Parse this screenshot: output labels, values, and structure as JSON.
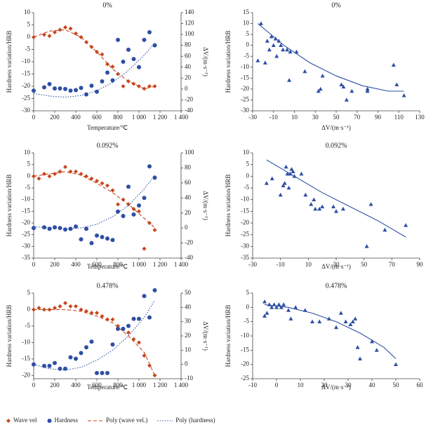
{
  "chart_data": [
    {
      "type": "scatter",
      "title": "0%",
      "x_label": "Temperature/℃",
      "y_label": "Hardness variation/HRB",
      "y2_label": "ΔV/(m·s⁻¹)",
      "xlim": [
        0,
        1400
      ],
      "xticks": [
        0,
        200,
        400,
        600,
        800,
        {
          "value": 1000,
          "label": "1 000"
        },
        {
          "value": 1200,
          "label": "1 200"
        },
        {
          "value": 1400,
          "label": "1 400"
        }
      ],
      "ylim": [
        -30,
        10
      ],
      "yticks": [
        10,
        5,
        0,
        -5,
        -10,
        -15,
        -20,
        -25,
        -30
      ],
      "y2lim": [
        -40,
        140
      ],
      "y2ticks": [
        140,
        120,
        100,
        80,
        60,
        40,
        20,
        0,
        -20,
        -40
      ],
      "legend": "bottom",
      "series": [
        {
          "name": "Wave vel",
          "color": "#c8461e",
          "marker": "diamond",
          "x": [
            0,
            100,
            150,
            200,
            250,
            300,
            350,
            400,
            450,
            500,
            550,
            600,
            650,
            700,
            750,
            800,
            850,
            900,
            950,
            1000,
            1050,
            1100,
            1150
          ],
          "values": [
            0,
            1,
            0.5,
            2,
            3,
            4,
            3.5,
            1.5,
            0,
            -2,
            -4,
            -6,
            -7,
            -11,
            -12,
            -15,
            -20,
            -18,
            -19,
            -20,
            -21,
            -20,
            -20
          ]
        },
        {
          "name": "Hardness",
          "color": "#2e4fa3",
          "marker": "circle",
          "axis": "y2",
          "x": [
            0,
            100,
            150,
            200,
            250,
            300,
            350,
            400,
            450,
            500,
            550,
            600,
            650,
            700,
            750,
            800,
            850,
            900,
            950,
            1000,
            1050,
            1100,
            1150
          ],
          "values": [
            -3,
            3,
            9,
            1,
            1,
            0,
            -3,
            -2,
            2,
            -10,
            6,
            -5,
            14,
            30,
            16,
            90,
            50,
            72,
            55,
            40,
            90,
            104,
            80
          ]
        },
        {
          "name": "Poly (wave vel.)",
          "color": "#c8461e",
          "line": "dashed",
          "x": [
            0,
            150,
            300,
            450,
            600,
            750,
            900,
            1050,
            1150
          ],
          "values": [
            0,
            2.5,
            3,
            0,
            -6,
            -13,
            -18,
            -21,
            -20
          ]
        },
        {
          "name": "Poly (hardness)",
          "color": "#2e4fa3",
          "line": "dotted",
          "axis": "y2",
          "x": [
            0,
            150,
            300,
            450,
            600,
            750,
            900,
            1050,
            1150
          ],
          "values": [
            -8,
            -13,
            -15,
            -12,
            -3,
            12,
            34,
            62,
            85
          ]
        }
      ]
    },
    {
      "type": "scatter",
      "title": "0%",
      "x_label": "ΔV/(m·s⁻¹)",
      "y_label": "Hardness variation/HRB",
      "xlim": [
        -30,
        130
      ],
      "xticks": [
        -30,
        -10,
        10,
        30,
        50,
        70,
        90,
        110,
        130
      ],
      "ylim": [
        -30,
        15
      ],
      "yticks": [
        15,
        10,
        5,
        0,
        -5,
        -10,
        -15,
        -20,
        -25,
        -30
      ],
      "series": [
        {
          "color": "#2e4fa3",
          "marker": "triangle",
          "x": [
            -25,
            -22,
            -18,
            -16,
            -14,
            -12,
            -10,
            -8,
            -7,
            -5,
            -3,
            -1,
            3,
            5,
            6,
            12,
            20,
            33,
            35,
            37,
            55,
            57,
            60,
            65,
            80,
            80,
            105,
            108,
            115
          ],
          "values": [
            -7,
            10,
            -8,
            2,
            -2,
            4,
            0,
            3,
            -5,
            2,
            0,
            -2,
            -2,
            -16,
            -3,
            -3,
            -12,
            -21,
            -20,
            -14,
            -18,
            -19,
            -25,
            -21,
            -21,
            -20,
            -9,
            -18,
            -23
          ]
        },
        {
          "color": "#2e4fa3",
          "line": "solid",
          "x": [
            -25,
            0,
            25,
            50,
            75,
            100,
            115
          ],
          "values": [
            10,
            0,
            -8,
            -14,
            -18.5,
            -21,
            -21
          ]
        }
      ]
    },
    {
      "type": "scatter",
      "title": "0.092%",
      "x_label": "Temperature/℃",
      "y_label": "Hardness variation/HRB",
      "y2_label": "ΔV/(m·s⁻¹)",
      "xlim": [
        0,
        1400
      ],
      "xticks": [
        0,
        200,
        400,
        600,
        800,
        {
          "value": 1000,
          "label": "1 000"
        },
        {
          "value": 1200,
          "label": "1 200"
        },
        {
          "value": 1400,
          "label": "1 400"
        }
      ],
      "ylim": [
        -35,
        10
      ],
      "yticks": [
        10,
        5,
        0,
        -5,
        -10,
        -15,
        -20,
        -25,
        -30,
        -35
      ],
      "y2lim": [
        -40,
        100
      ],
      "y2ticks": [
        100,
        80,
        60,
        40,
        20,
        0,
        -20,
        -40
      ],
      "series": [
        {
          "color": "#c8461e",
          "marker": "diamond",
          "x": [
            0,
            50,
            100,
            150,
            200,
            250,
            300,
            350,
            400,
            450,
            500,
            550,
            600,
            650,
            700,
            750,
            800,
            850,
            900,
            950,
            1000,
            1050,
            1100,
            1150
          ],
          "values": [
            0,
            -1,
            1,
            0,
            1,
            2,
            4,
            2,
            2,
            1,
            0,
            -1,
            -2,
            -3,
            -4,
            -6,
            -12,
            -10,
            -12,
            -14,
            -15,
            -31,
            -20,
            -23
          ]
        },
        {
          "color": "#2e4fa3",
          "marker": "circle",
          "axis": "y2",
          "x": [
            0,
            100,
            150,
            200,
            250,
            300,
            350,
            400,
            450,
            500,
            550,
            600,
            650,
            700,
            750,
            800,
            850,
            900,
            950,
            1000,
            1050,
            1100,
            1150
          ],
          "values": [
            0,
            1,
            -1,
            1,
            0,
            -2,
            -1,
            2,
            -15,
            -1,
            -20,
            -10,
            -12,
            -14,
            -16,
            22,
            16,
            55,
            18,
            30,
            40,
            82,
            67
          ]
        },
        {
          "color": "#c8461e",
          "line": "dashed",
          "x": [
            0,
            150,
            300,
            450,
            600,
            750,
            900,
            1050,
            1150
          ],
          "values": [
            0,
            1,
            2,
            0.5,
            -3,
            -7,
            -12,
            -18,
            -22
          ]
        },
        {
          "color": "#2e4fa3",
          "line": "dotted",
          "axis": "y2",
          "x": [
            0,
            150,
            300,
            450,
            600,
            750,
            900,
            1050,
            1150
          ],
          "values": [
            2,
            0,
            -1,
            0,
            5,
            15,
            30,
            52,
            70
          ]
        }
      ]
    },
    {
      "type": "scatter",
      "title": "0.092%",
      "x_label": "ΔV/(m·s⁻¹)",
      "y_label": "Hardness variation/HRB",
      "xlim": [
        -30,
        90
      ],
      "xticks": [
        -30,
        -10,
        10,
        30,
        50,
        70,
        90
      ],
      "ylim": [
        -35,
        10
      ],
      "yticks": [
        10,
        5,
        0,
        -5,
        -10,
        -15,
        -20,
        -25,
        -30,
        -35
      ],
      "series": [
        {
          "color": "#2e4fa3",
          "marker": "triangle",
          "x": [
            -20,
            -16,
            -10,
            -8,
            -7,
            -6,
            -5,
            -4,
            -3,
            -2,
            -1,
            0,
            5,
            8,
            12,
            14,
            15,
            18,
            20,
            28,
            30,
            35,
            52,
            55,
            65,
            80
          ],
          "values": [
            -3,
            -1,
            -8,
            -4,
            -3,
            4,
            1,
            -5,
            1,
            3,
            2,
            0,
            1,
            -8,
            -12,
            -10,
            -14,
            -14,
            -13,
            -13,
            -15,
            -14,
            -30,
            -12,
            -23,
            -21
          ]
        },
        {
          "color": "#2e4fa3",
          "line": "solid",
          "x": [
            -20,
            0,
            20,
            40,
            60,
            80
          ],
          "values": [
            7,
            0,
            -7,
            -13,
            -19,
            -26
          ]
        }
      ]
    },
    {
      "type": "scatter",
      "title": "0.478%",
      "x_label": "Temperature/℃",
      "y_label": "Hardness variation/HRB",
      "y2_label": "ΔV/(m·s⁻¹)",
      "xlim": [
        0,
        1400
      ],
      "xticks": [
        0,
        200,
        400,
        600,
        800,
        {
          "value": 1000,
          "label": "1 000"
        },
        {
          "value": 1200,
          "label": "1 200"
        },
        {
          "value": 1400,
          "label": "1 400"
        }
      ],
      "ylim": [
        -21,
        5
      ],
      "yticks": [
        5,
        0,
        -5,
        -10,
        -15,
        -20
      ],
      "y2lim": [
        -10,
        50
      ],
      "y2ticks": [
        50,
        40,
        30,
        20,
        10,
        0,
        -10
      ],
      "series": [
        {
          "color": "#c8461e",
          "marker": "diamond",
          "x": [
            0,
            50,
            100,
            150,
            200,
            250,
            300,
            350,
            400,
            450,
            500,
            550,
            600,
            650,
            700,
            750,
            800,
            850,
            900,
            950,
            1000,
            1050,
            1100,
            1150
          ],
          "values": [
            0,
            0.5,
            0,
            0,
            0.5,
            1,
            2,
            1,
            1,
            0,
            -0.5,
            -1,
            -1,
            -2,
            -3,
            -3,
            -5,
            -6,
            -7,
            -9,
            -10,
            -14,
            -17,
            -20
          ]
        },
        {
          "color": "#2e4fa3",
          "marker": "circle",
          "axis": "y2",
          "x": [
            0,
            100,
            150,
            200,
            250,
            300,
            350,
            400,
            450,
            500,
            550,
            600,
            650,
            700,
            750,
            800,
            850,
            900,
            950,
            1000,
            1050,
            1100,
            1150
          ],
          "values": [
            0,
            -1,
            -1,
            1,
            -3,
            -3,
            5,
            4,
            8,
            12,
            16,
            -6,
            -6,
            -6,
            14,
            25,
            25,
            27,
            32,
            32,
            48,
            33,
            52
          ]
        },
        {
          "color": "#c8461e",
          "line": "dashed",
          "x": [
            0,
            150,
            300,
            450,
            600,
            750,
            900,
            1050,
            1150
          ],
          "values": [
            0,
            0,
            0,
            -0.5,
            -2,
            -4,
            -8,
            -13,
            -20
          ]
        },
        {
          "color": "#2e4fa3",
          "line": "dotted",
          "axis": "y2",
          "x": [
            0,
            150,
            300,
            450,
            600,
            750,
            900,
            1050,
            1150
          ],
          "values": [
            0,
            -3,
            -4,
            -2,
            3,
            10,
            20,
            33,
            45
          ]
        }
      ]
    },
    {
      "type": "scatter",
      "title": "0.478%",
      "x_label": "ΔV/(m·s⁻¹)",
      "y_label": "Hardness variation/HRB",
      "xlim": [
        -10,
        60
      ],
      "xticks": [
        -10,
        0,
        10,
        20,
        30,
        40,
        50,
        60
      ],
      "ylim": [
        -25,
        5
      ],
      "yticks": [
        5,
        0,
        -5,
        -10,
        -15,
        -20,
        -25
      ],
      "series": [
        {
          "color": "#2e4fa3",
          "marker": "triangle",
          "x": [
            -5,
            -5,
            -4,
            -3,
            -2,
            -1,
            0,
            1,
            2,
            3,
            5,
            6,
            8,
            12,
            15,
            18,
            22,
            25,
            27,
            29,
            31,
            32,
            33,
            34,
            35,
            40,
            42,
            50
          ],
          "values": [
            2,
            -3,
            -2,
            1,
            0,
            1,
            0,
            1,
            0,
            1,
            -1,
            -4,
            0,
            -1,
            -5,
            -5,
            -4,
            -7,
            -2,
            -5,
            -6,
            -5,
            -4,
            -14,
            -18,
            -12,
            -15,
            -20
          ]
        },
        {
          "color": "#2e4fa3",
          "line": "solid",
          "x": [
            -5,
            5,
            15,
            25,
            35,
            45,
            50
          ],
          "values": [
            1,
            0,
            -2,
            -5,
            -9,
            -14,
            -18
          ]
        }
      ]
    }
  ]
}
